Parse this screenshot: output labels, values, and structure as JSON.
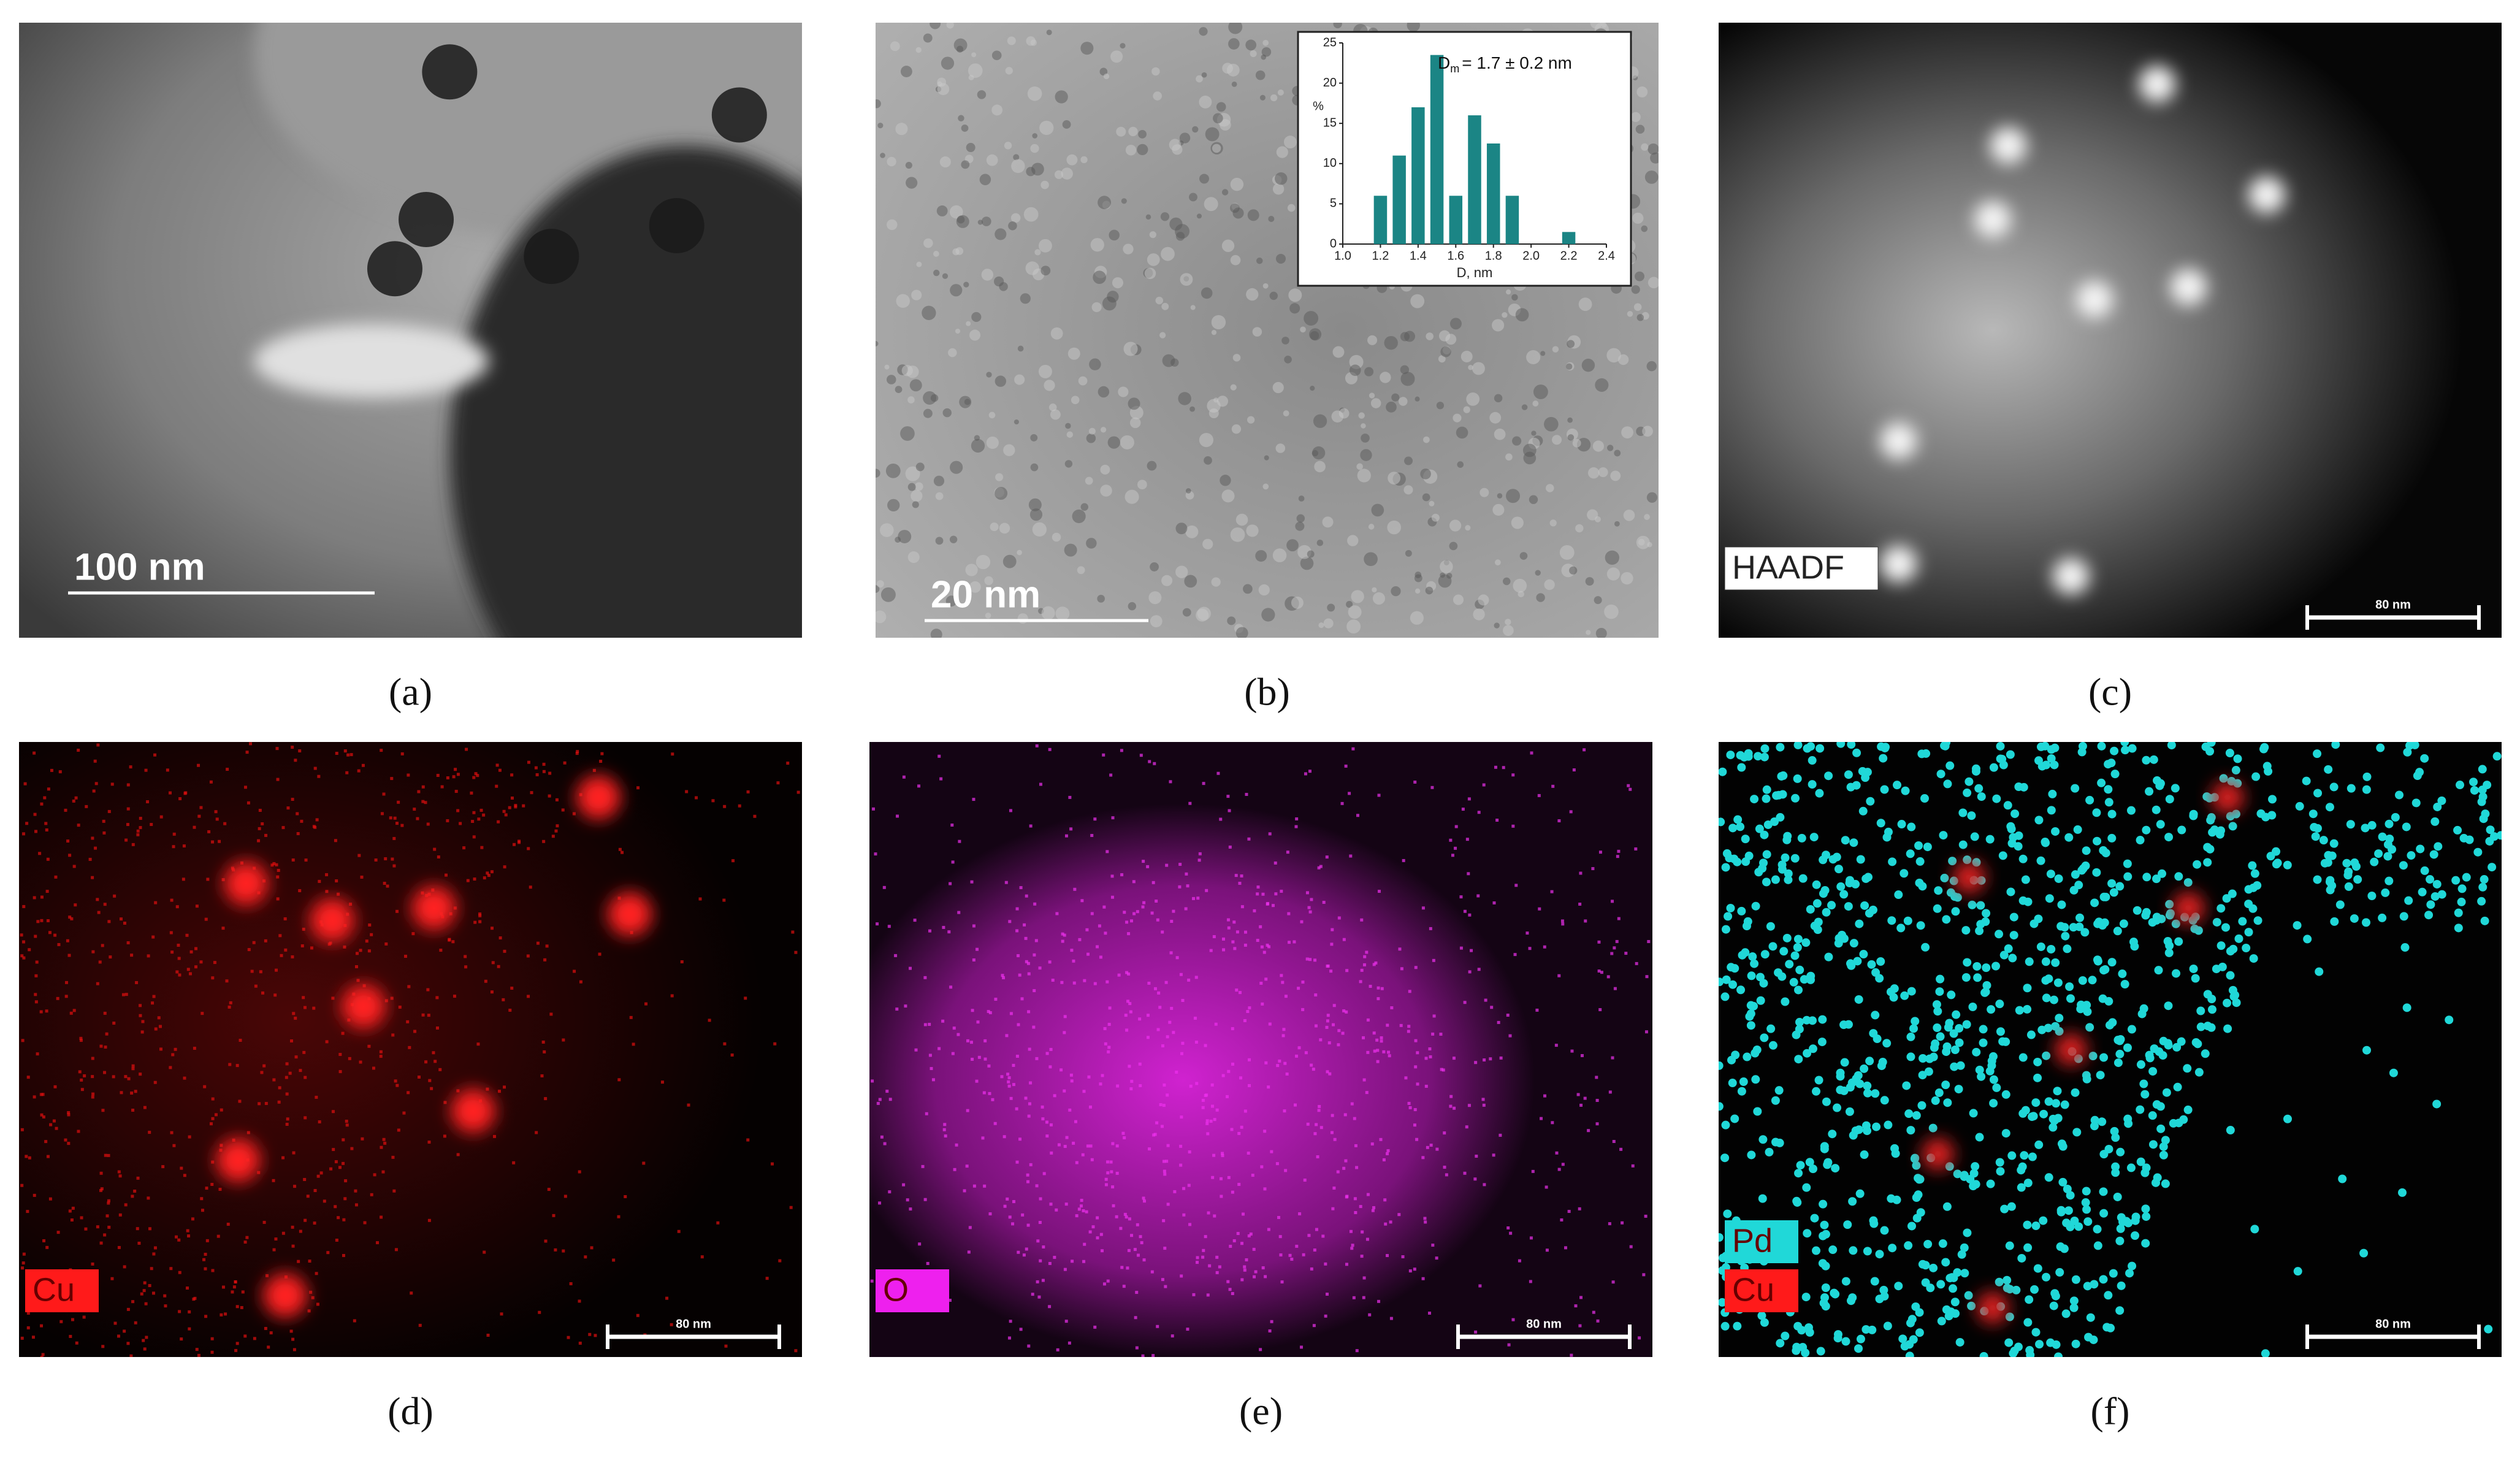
{
  "panels": [
    {
      "caption": "(a)",
      "scale_bar": "100 nm"
    },
    {
      "caption": "(b)",
      "scale_bar": "20 nm"
    },
    {
      "caption": "(c)",
      "scale_bar": "80 nm",
      "labels": [
        "HAADF"
      ]
    },
    {
      "caption": "(d)",
      "scale_bar": "80 nm",
      "labels": [
        "Cu"
      ]
    },
    {
      "caption": "(e)",
      "scale_bar": "80 nm",
      "labels": [
        "O"
      ]
    },
    {
      "caption": "(f)",
      "scale_bar": "80 nm",
      "labels": [
        "Pd",
        "Cu"
      ]
    }
  ],
  "chart_data": {
    "type": "bar",
    "annotation": {
      "symbol": "D",
      "subscript": "m",
      "text": "= 1.7 ± 0.2 nm"
    },
    "x_label": "D, nm",
    "y_label": "%",
    "x": [
      1.2,
      1.3,
      1.4,
      1.5,
      1.6,
      1.7,
      1.8,
      1.9,
      2.2
    ],
    "values": [
      6,
      11,
      17,
      23.5,
      6,
      16,
      12.5,
      6,
      1.5
    ],
    "color": "#1b8585",
    "xlim": [
      1.0,
      2.4
    ],
    "xticks": [
      {
        "value": 1,
        "label": "1.0"
      },
      1.2,
      1.4,
      1.6,
      1.8,
      {
        "value": 2,
        "label": "2.0"
      },
      2.2,
      2.4
    ],
    "ylim": [
      0,
      25
    ],
    "yticks": [
      0,
      5,
      10,
      15,
      20,
      25
    ]
  }
}
